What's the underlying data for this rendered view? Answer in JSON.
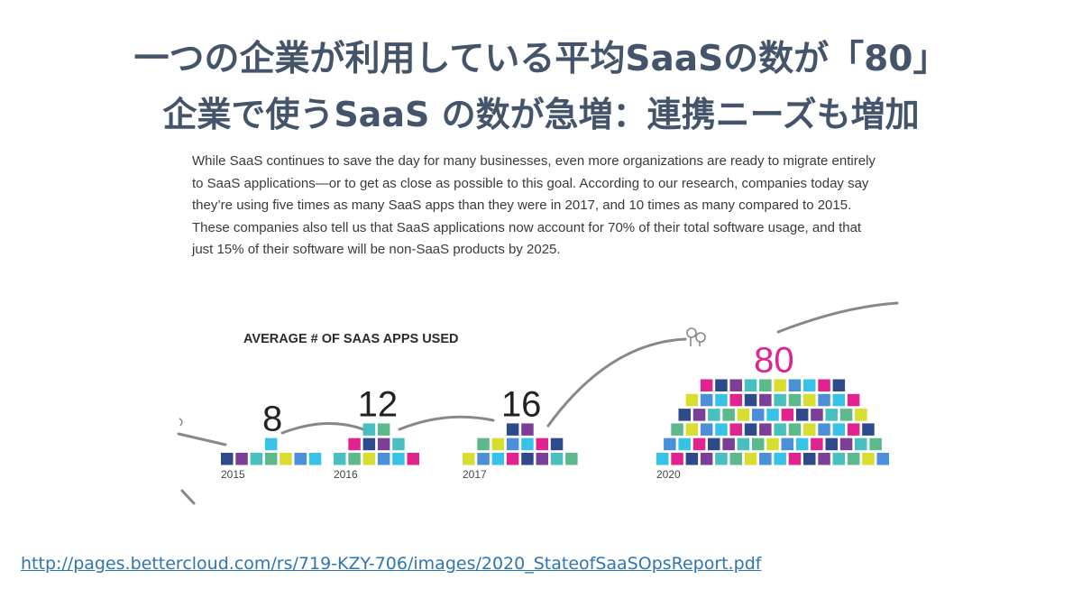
{
  "slide": {
    "title_line1": "一つの企業が利用している平均SaaSの数が「80」",
    "title_line2": "企業で使うSaaS の数が急増：連携ニーズも増加",
    "body": "While SaaS continues to save the day for many businesses, even more organizations are ready to migrate entirely to SaaS applications—or to get as close as possible to this goal. According to our research, companies today say they’re using five times as many SaaS apps than they were in 2017, and 10 times as many compared to 2015. These companies also tell us that SaaS applications now account for 70% of their total software usage, and that just 15% of their software will be non-SaaS products by 2025.",
    "source_url": "http://pages.bettercloud.com/rs/719-KZY-706/images/2020_StateofSaaSOpsReport.pdf"
  },
  "colors": {
    "title": "#44546a",
    "link": "#2e75b6",
    "highlight": "#e0238f",
    "squares": [
      "#2d4a8a",
      "#4a8fd8",
      "#48c0bf",
      "#e0238f",
      "#d7de2f",
      "#7b3f98",
      "#37c3e8",
      "#5cb98b"
    ]
  },
  "chart_data": {
    "type": "bar",
    "title": "AVERAGE # OF SAAS APPS USED",
    "categories": [
      "2015",
      "2016",
      "2017",
      "2020"
    ],
    "values": [
      8,
      12,
      16,
      80
    ],
    "highlight_category": "2020"
  }
}
